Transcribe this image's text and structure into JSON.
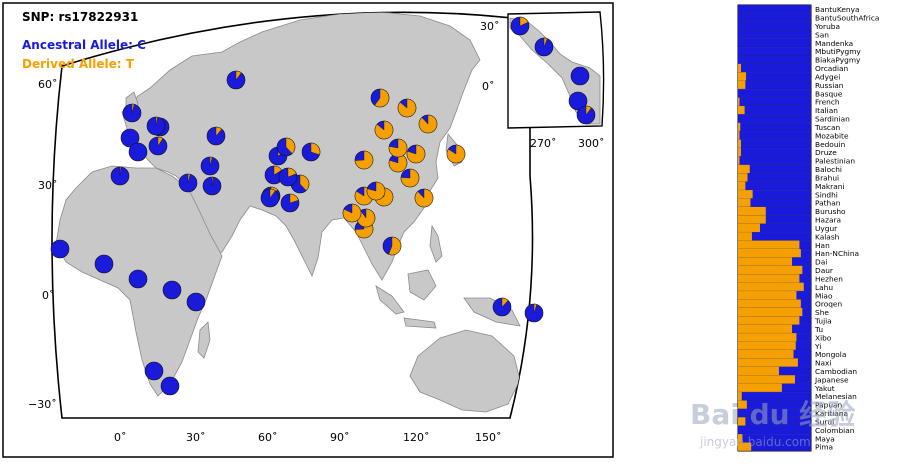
{
  "map_panel": {
    "snp_label": "SNP: rs17822931",
    "ancestral_label": "Ancestral Allele: C",
    "derived_label": "Derived Allele: T",
    "ancestral_color": "#1a1adb",
    "derived_color": "#f5a000",
    "land_color": "#c8c8c8",
    "lat_labels": [
      "60˚",
      "30˚",
      "0˚",
      "−30˚"
    ],
    "lon_labels": [
      "0˚",
      "30˚",
      "60˚",
      "90˚",
      "120˚",
      "150˚"
    ],
    "inset": {
      "lat_labels": [
        "30˚",
        "0˚"
      ],
      "lon_labels": [
        "270˚",
        "300˚"
      ]
    }
  },
  "chart_data": {
    "type": "bar",
    "orientation": "horizontal-stacked",
    "series": [
      {
        "name": "Derived Allele: T"
      },
      {
        "name": "Ancestral Allele: C"
      }
    ],
    "categories": [
      "BantuKenya",
      "BantuSouthAfrica",
      "Yoruba",
      "San",
      "Mandenka",
      "MbutiPygmy",
      "BiakaPygmy",
      "Orcadian",
      "Adygei",
      "Russian",
      "Basque",
      "French",
      "Italian",
      "Sardinian",
      "Tuscan",
      "Mozabite",
      "Bedouin",
      "Druze",
      "Palestinian",
      "Balochi",
      "Brahui",
      "Makrani",
      "Sindhi",
      "Pathan",
      "Burusho",
      "Hazara",
      "Uygur",
      "Kalash",
      "Han",
      "Han-NChina",
      "Dai",
      "Daur",
      "Hezhen",
      "Lahu",
      "Miao",
      "Oroqen",
      "She",
      "Tujia",
      "Tu",
      "Xibo",
      "Yi",
      "Mongola",
      "Naxi",
      "Cambodian",
      "Japanese",
      "Yakut",
      "Melanesian",
      "Papuan",
      "Karitiana",
      "Surui",
      "Colombian",
      "Maya",
      "Pima"
    ],
    "derived_fraction": [
      0,
      0,
      0,
      0,
      0,
      0,
      0,
      0.04,
      0.11,
      0.1,
      0,
      0.02,
      0.09,
      0,
      0.03,
      0.02,
      0.04,
      0.04,
      0.02,
      0.16,
      0.13,
      0.1,
      0.2,
      0.17,
      0.38,
      0.38,
      0.3,
      0.19,
      0.84,
      0.86,
      0.74,
      0.88,
      0.84,
      0.9,
      0.8,
      0.86,
      0.88,
      0.84,
      0.74,
      0.8,
      0.79,
      0.76,
      0.82,
      0.56,
      0.78,
      0.6,
      0.05,
      0.12,
      0,
      0.1,
      0,
      0.06,
      0.18
    ],
    "xlim": [
      0,
      1
    ]
  },
  "watermark": {
    "logo": "Bai du 经验",
    "url": "jingyan.baidu.com"
  }
}
